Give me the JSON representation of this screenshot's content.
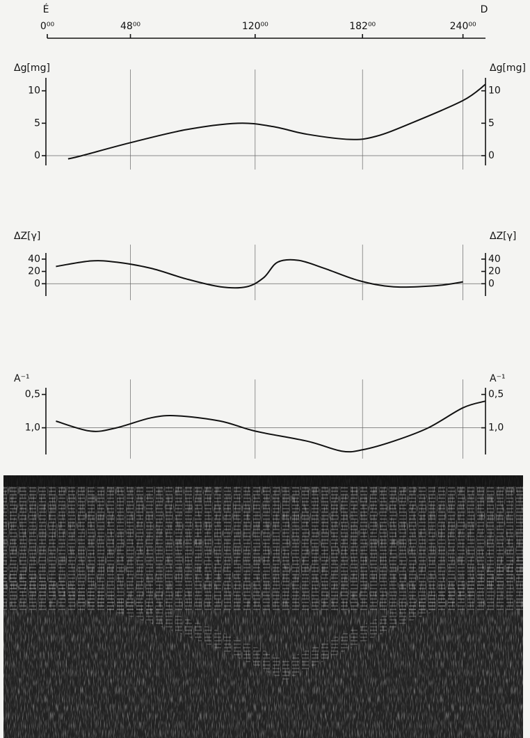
{
  "chart_data": [
    {
      "type": "axis",
      "start_label": "É",
      "end_label": "D",
      "xlim": [
        0,
        253
      ],
      "xticks": [
        {
          "value": 0,
          "label": "0⁰⁰"
        },
        {
          "value": 48,
          "label": "48⁰⁰"
        },
        {
          "value": 120,
          "label": "120⁰⁰"
        },
        {
          "value": 182,
          "label": "182⁰⁰"
        },
        {
          "value": 240,
          "label": "240⁰⁰"
        }
      ]
    },
    {
      "type": "line",
      "y_label": "Δg[mg]",
      "xlim": [
        0,
        253
      ],
      "ylim": [
        -1.5,
        12
      ],
      "yticks": [
        0,
        5,
        10
      ],
      "reference_line": 0,
      "grid": true,
      "color": "#111111",
      "x": [
        12,
        20,
        48,
        80,
        110,
        130,
        150,
        175,
        190,
        210,
        240,
        253
      ],
      "values": [
        -0.5,
        0,
        2,
        4,
        5,
        4.5,
        3.3,
        2.5,
        3,
        5,
        8.5,
        11
      ]
    },
    {
      "type": "line",
      "y_label": "ΔZ[γ]",
      "xlim": [
        0,
        253
      ],
      "ylim": [
        -20,
        50
      ],
      "yticks": [
        0,
        20,
        40
      ],
      "reference_line": 0,
      "grid": true,
      "color": "#111111",
      "x": [
        5,
        25,
        40,
        60,
        80,
        100,
        115,
        125,
        133,
        145,
        160,
        180,
        200,
        225,
        240
      ],
      "values": [
        28,
        37,
        35,
        25,
        8,
        -5,
        -5,
        10,
        35,
        38,
        25,
        5,
        -5,
        -3,
        3
      ]
    },
    {
      "type": "line",
      "y_label": "A⁻¹",
      "xlim": [
        0,
        253
      ],
      "ylim": [
        1.4,
        0.4
      ],
      "yticks": [
        {
          "value": 0.5,
          "label": "0,5"
        },
        {
          "value": 1.0,
          "label": "1,0"
        }
      ],
      "reference_line": 1.0,
      "grid": true,
      "color": "#111111",
      "x": [
        5,
        25,
        40,
        60,
        75,
        100,
        120,
        150,
        170,
        182,
        200,
        220,
        240,
        253
      ],
      "values": [
        0.9,
        1.05,
        1.0,
        0.85,
        0.82,
        0.9,
        1.05,
        1.2,
        1.35,
        1.33,
        1.2,
        1.0,
        0.7,
        0.6
      ]
    }
  ]
}
